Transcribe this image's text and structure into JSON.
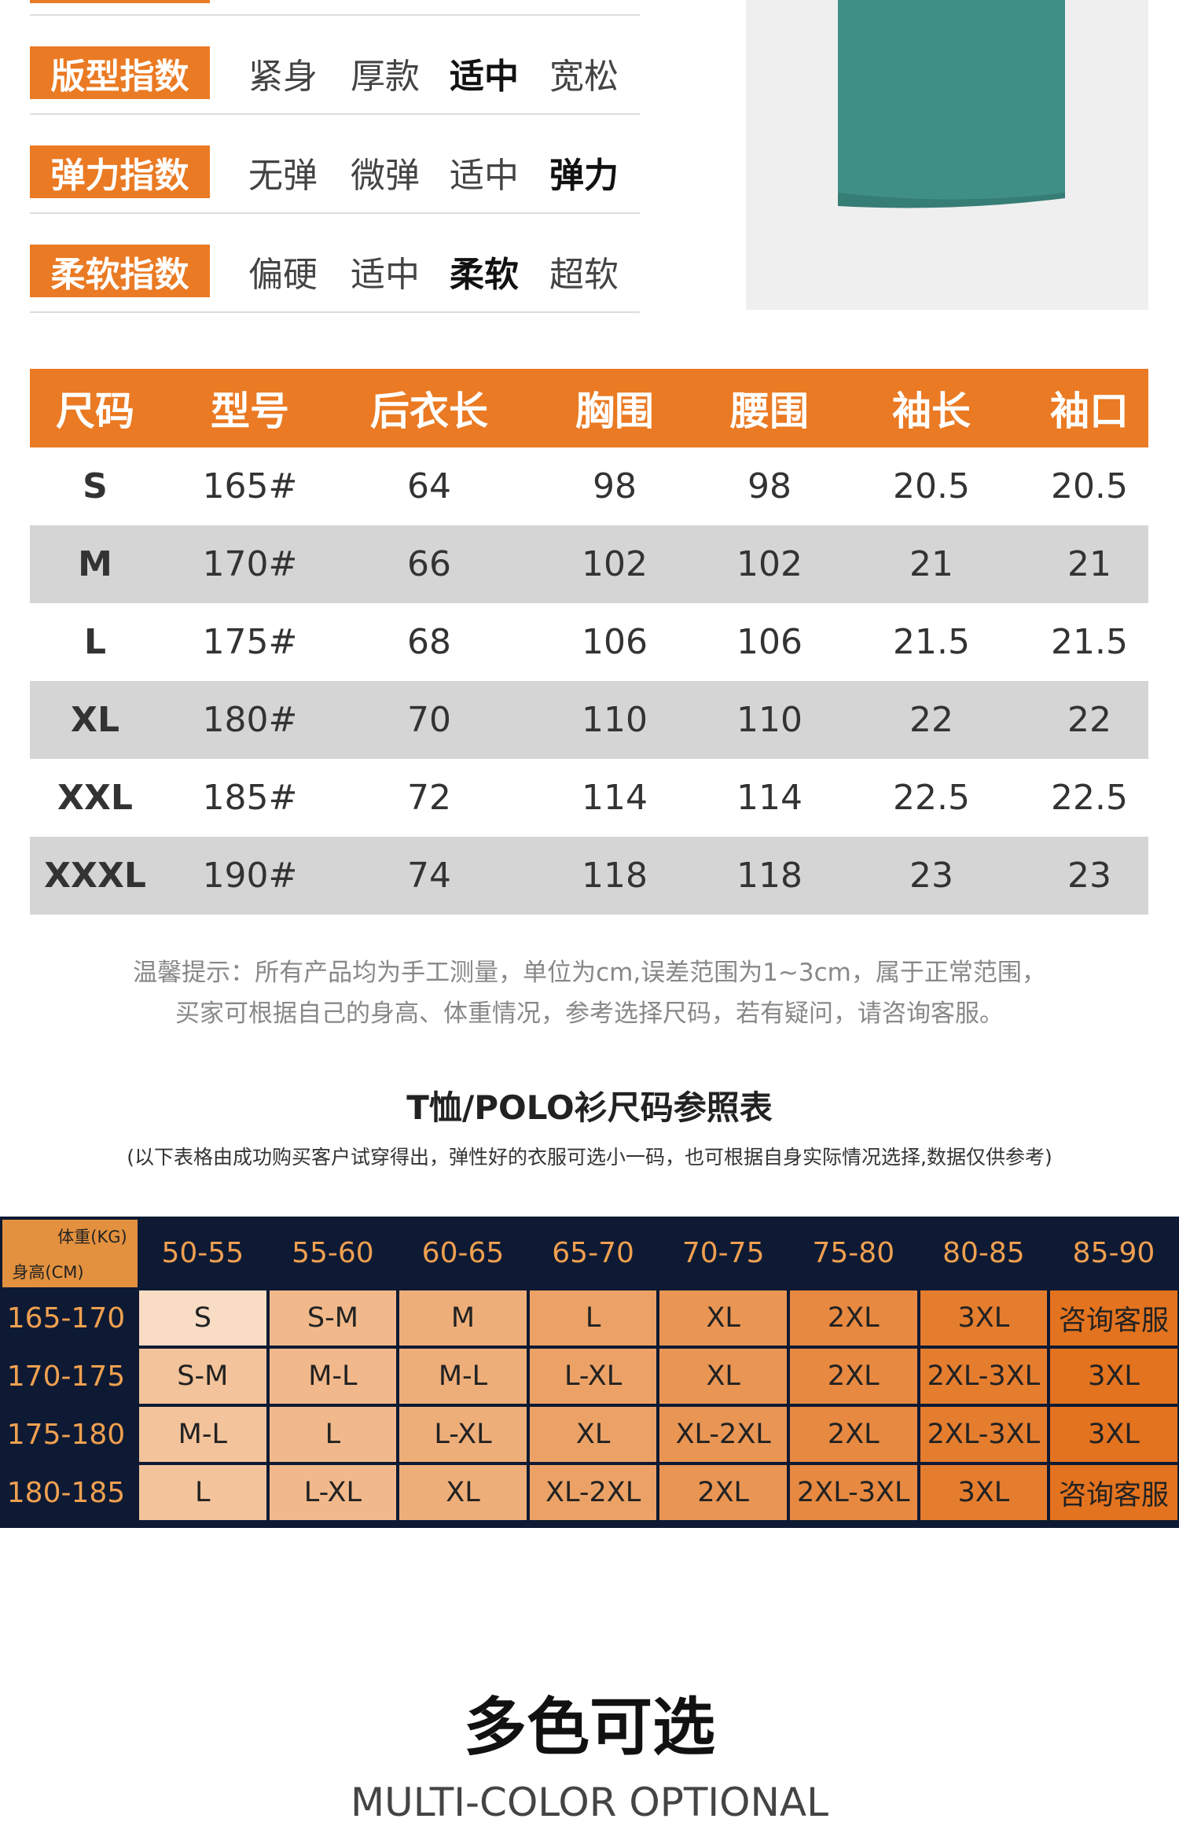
{
  "attributes": [
    {
      "label": "版型指数",
      "options": [
        "紧身",
        "厚款",
        "适中",
        "宽松"
      ],
      "selected": 2
    },
    {
      "label": "弹力指数",
      "options": [
        "无弹",
        "微弹",
        "适中",
        "弹力"
      ],
      "selected": 3
    },
    {
      "label": "柔软指数",
      "options": [
        "偏硬",
        "适中",
        "柔软",
        "超软"
      ],
      "selected": 2
    }
  ],
  "size_table": {
    "headers": [
      "尺码",
      "型号",
      "后衣长",
      "胸围",
      "腰围",
      "袖长",
      "袖口"
    ],
    "rows": [
      [
        "S",
        "165#",
        "64",
        "98",
        "98",
        "20.5",
        "20.5"
      ],
      [
        "M",
        "170#",
        "66",
        "102",
        "102",
        "21",
        "21"
      ],
      [
        "L",
        "175#",
        "68",
        "106",
        "106",
        "21.5",
        "21.5"
      ],
      [
        "XL",
        "180#",
        "70",
        "110",
        "110",
        "22",
        "22"
      ],
      [
        "XXL",
        "185#",
        "72",
        "114",
        "114",
        "22.5",
        "22.5"
      ],
      [
        "XXXL",
        "190#",
        "74",
        "118",
        "118",
        "23",
        "23"
      ]
    ]
  },
  "note": [
    "温馨提示：所有产品均为手工测量，单位为cm,误差范围为1~3cm，属于正常范围，",
    "买家可根据自己的身高、体重情况，参考选择尺码，若有疑问，请咨询客服。"
  ],
  "reference": {
    "title": "T恤/POLO衫尺码参照表",
    "subtitle": "(以下表格由成功购买客户试穿得出，弹性好的衣服可选小一码，也可根据自身实际情况选择,数据仅供参考)",
    "corner_weight": "体重(KG)",
    "corner_height": "身高(CM)",
    "weights": [
      "50-55",
      "55-60",
      "60-65",
      "65-70",
      "70-75",
      "75-80",
      "80-85",
      "85-90"
    ],
    "rows": [
      {
        "height": "165-170",
        "sizes": [
          "S",
          "S-M",
          "M",
          "L",
          "XL",
          "2XL",
          "3XL",
          "咨询客服"
        ]
      },
      {
        "height": "170-175",
        "sizes": [
          "S-M",
          "M-L",
          "M-L",
          "L-XL",
          "XL",
          "2XL",
          "2XL-3XL",
          "3XL"
        ]
      },
      {
        "height": "175-180",
        "sizes": [
          "M-L",
          "L",
          "L-XL",
          "XL",
          "XL-2XL",
          "2XL",
          "2XL-3XL",
          "3XL"
        ]
      },
      {
        "height": "180-185",
        "sizes": [
          "L",
          "L-XL",
          "XL",
          "XL-2XL",
          "2XL",
          "2XL-3XL",
          "3XL",
          "咨询客服"
        ]
      }
    ]
  },
  "footer": {
    "title": "多色可选",
    "subtitle": "MULTI-COLOR OPTIONAL"
  }
}
